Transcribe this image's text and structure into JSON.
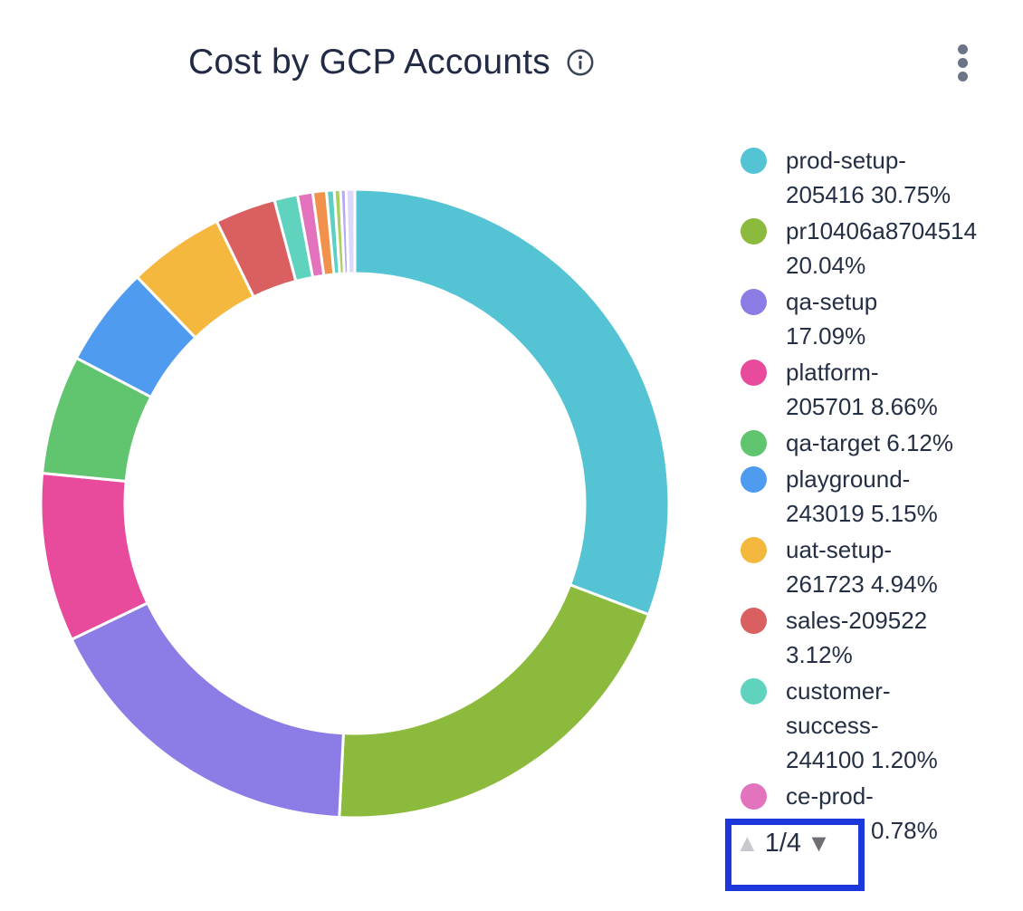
{
  "header": {
    "title": "Cost by GCP Accounts",
    "title_color": "#222b45",
    "info_icon_color": "#3a4558",
    "menu_icon_color": "#6b7587"
  },
  "chart_data": {
    "type": "pie",
    "donut": true,
    "title": "Cost by GCP Accounts",
    "unit": "%",
    "legend_position": "right",
    "start_angle_deg": -90,
    "direction": "clockwise",
    "slices": [
      {
        "label": "prod-setup-205416",
        "value": 30.75,
        "color": "#54c4d4"
      },
      {
        "label": "pr10406a8704514",
        "value": 20.04,
        "color": "#8cba3c"
      },
      {
        "label": "qa-setup",
        "value": 17.09,
        "color": "#8b7de5"
      },
      {
        "label": "platform-205701",
        "value": 8.66,
        "color": "#e84a9c"
      },
      {
        "label": "qa-target",
        "value": 6.12,
        "color": "#61c46e"
      },
      {
        "label": "playground-243019",
        "value": 5.15,
        "color": "#4e9bef"
      },
      {
        "label": "uat-setup-261723",
        "value": 4.94,
        "color": "#f5b83f"
      },
      {
        "label": "sales-209522",
        "value": 3.12,
        "color": "#d95f60"
      },
      {
        "label": "customer-success-244100",
        "value": 1.2,
        "color": "#5fd3bd"
      },
      {
        "label": "ce-prod-274397",
        "value": 0.78,
        "color": "#e273bc"
      },
      {
        "label": "",
        "value": 0.7,
        "color": "#f0924b"
      },
      {
        "label": "",
        "value": 0.4,
        "color": "#5ecfc4"
      },
      {
        "label": "",
        "value": 0.32,
        "color": "#a9d05e"
      },
      {
        "label": "",
        "value": 0.28,
        "color": "#b7aaf2"
      },
      {
        "label": "",
        "value": 0.45,
        "color": "#ddd8f8"
      }
    ]
  },
  "legend": {
    "items": [
      {
        "color": "#54c4d4",
        "lines": [
          "prod-setup-",
          "205416 30.75%"
        ]
      },
      {
        "color": "#8cba3c",
        "lines": [
          "pr10406a8704514",
          "20.04%"
        ]
      },
      {
        "color": "#8b7de5",
        "lines": [
          "qa-setup",
          "17.09%"
        ]
      },
      {
        "color": "#e84a9c",
        "lines": [
          "platform-",
          "205701 8.66%"
        ]
      },
      {
        "color": "#61c46e",
        "lines": [
          "qa-target 6.12%"
        ]
      },
      {
        "color": "#4e9bef",
        "lines": [
          "playground-",
          "243019 5.15%"
        ]
      },
      {
        "color": "#f5b83f",
        "lines": [
          "uat-setup-",
          "261723 4.94%"
        ]
      },
      {
        "color": "#d95f60",
        "lines": [
          "sales-209522",
          "3.12%"
        ]
      },
      {
        "color": "#5fd3bd",
        "lines": [
          "customer-",
          "success-",
          "244100 1.20%"
        ]
      },
      {
        "color": "#e273bc",
        "lines": [
          "ce-prod-",
          "274397 0.78%"
        ]
      }
    ]
  },
  "pagination": {
    "label": "1/4",
    "current_page": 1,
    "total_pages": 4,
    "up_arrow": "▲",
    "down_arrow": "▼",
    "highlight_border_color": "#1c38dd",
    "up_arrow_color": "#c7c9cc",
    "down_arrow_color": "#6d6f72"
  }
}
